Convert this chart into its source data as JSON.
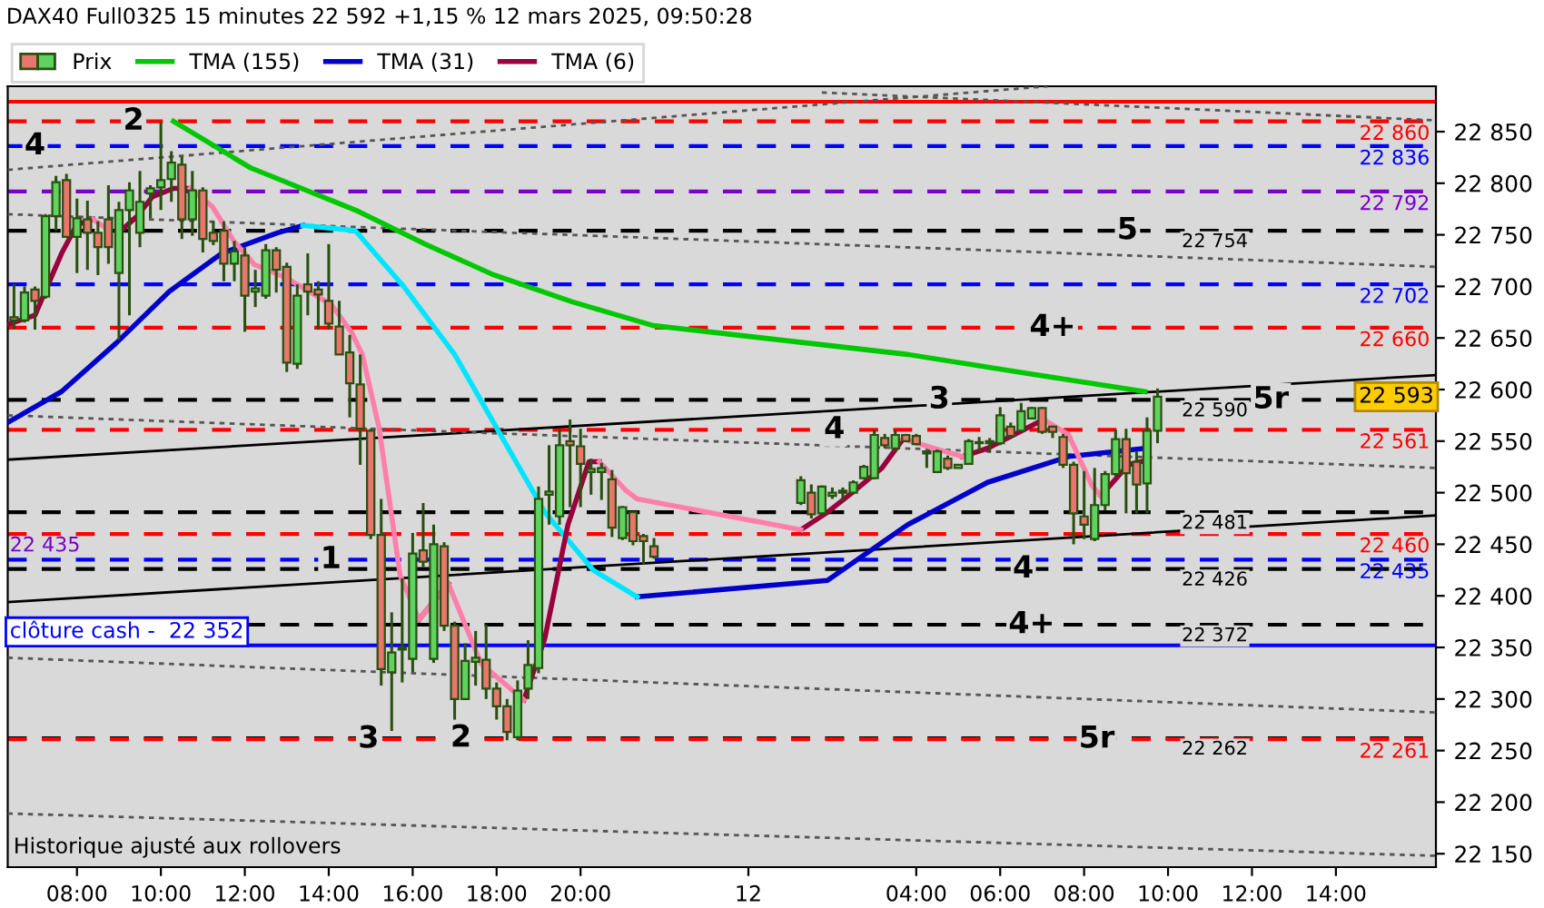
{
  "chart_data": {
    "type": "candlestick",
    "title": "DAX40 Full0325 15 minutes 22 592 +1,15 % 12 mars 2025, 09:50:28",
    "xlim": [
      "2025-03-11T06:21",
      "2025-03-12T16:23"
    ],
    "xticks": [
      {
        "value": "2025-03-11T08:00",
        "label": "08:00"
      },
      {
        "value": "2025-03-11T10:00",
        "label": "10:00"
      },
      {
        "value": "2025-03-11T12:00",
        "label": "12:00"
      },
      {
        "value": "2025-03-11T14:00",
        "label": "14:00"
      },
      {
        "value": "2025-03-11T16:00",
        "label": "16:00"
      },
      {
        "value": "2025-03-11T18:00",
        "label": "18:00"
      },
      {
        "value": "2025-03-11T20:00",
        "label": "20:00"
      },
      {
        "value": "2025-03-12T00:00",
        "label": "12"
      },
      {
        "value": "2025-03-12T04:00",
        "label": "04:00"
      },
      {
        "value": "2025-03-12T06:00",
        "label": "06:00"
      },
      {
        "value": "2025-03-12T08:00",
        "label": "08:00"
      },
      {
        "value": "2025-03-12T10:00",
        "label": "10:00"
      },
      {
        "value": "2025-03-12T12:00",
        "label": "12:00"
      },
      {
        "value": "2025-03-12T14:00",
        "label": "14:00"
      }
    ],
    "ylim": [
      22137,
      22894
    ],
    "yticks": [
      {
        "value": 22150,
        "label": "22 150"
      },
      {
        "value": 22200,
        "label": "22 200"
      },
      {
        "value": 22250,
        "label": "22 250"
      },
      {
        "value": 22300,
        "label": "22 300"
      },
      {
        "value": 22350,
        "label": "22 350"
      },
      {
        "value": 22400,
        "label": "22 400"
      },
      {
        "value": 22450,
        "label": "22 450"
      },
      {
        "value": 22500,
        "label": "22 500"
      },
      {
        "value": 22550,
        "label": "22 550"
      },
      {
        "value": 22600,
        "label": "22 600"
      },
      {
        "value": 22650,
        "label": "22 650"
      },
      {
        "value": 22700,
        "label": "22 700"
      },
      {
        "value": 22750,
        "label": "22 750"
      },
      {
        "value": 22800,
        "label": "22 800"
      },
      {
        "value": 22850,
        "label": "22 850"
      }
    ],
    "legend": "top left",
    "series": [
      {
        "name": "Prix",
        "x": [
          "2025-03-11T06:30",
          "2025-03-11T06:45",
          "2025-03-11T07:00",
          "2025-03-11T07:15",
          "2025-03-11T07:30",
          "2025-03-11T07:45",
          "2025-03-11T08:00",
          "2025-03-11T08:15",
          "2025-03-11T08:30",
          "2025-03-11T08:45",
          "2025-03-11T09:00",
          "2025-03-11T09:15",
          "2025-03-11T09:30",
          "2025-03-11T09:45",
          "2025-03-11T10:00",
          "2025-03-11T10:15",
          "2025-03-11T10:30",
          "2025-03-11T10:45",
          "2025-03-11T11:00",
          "2025-03-11T11:15",
          "2025-03-11T11:30",
          "2025-03-11T11:45",
          "2025-03-11T12:00",
          "2025-03-11T12:15",
          "2025-03-11T12:30",
          "2025-03-11T12:45",
          "2025-03-11T13:00",
          "2025-03-11T13:15",
          "2025-03-11T13:30",
          "2025-03-11T13:45",
          "2025-03-11T14:00",
          "2025-03-11T14:15",
          "2025-03-11T14:30",
          "2025-03-11T14:45",
          "2025-03-11T15:00",
          "2025-03-11T15:15",
          "2025-03-11T15:30",
          "2025-03-11T15:45",
          "2025-03-11T16:00",
          "2025-03-11T16:15",
          "2025-03-11T16:30",
          "2025-03-11T16:45",
          "2025-03-11T17:00",
          "2025-03-11T17:15",
          "2025-03-11T17:30",
          "2025-03-11T17:45",
          "2025-03-11T18:00",
          "2025-03-11T18:15",
          "2025-03-11T18:30",
          "2025-03-11T18:45",
          "2025-03-11T19:00",
          "2025-03-11T19:15",
          "2025-03-11T19:30",
          "2025-03-11T19:45",
          "2025-03-11T20:00",
          "2025-03-11T20:15",
          "2025-03-11T20:30",
          "2025-03-11T20:45",
          "2025-03-11T21:00",
          "2025-03-11T21:15",
          "2025-03-11T21:30",
          "2025-03-11T21:45",
          "2025-03-12T01:15",
          "2025-03-12T01:30",
          "2025-03-12T01:45",
          "2025-03-12T02:00",
          "2025-03-12T02:15",
          "2025-03-12T02:30",
          "2025-03-12T02:45",
          "2025-03-12T03:00",
          "2025-03-12T03:15",
          "2025-03-12T03:30",
          "2025-03-12T03:45",
          "2025-03-12T04:00",
          "2025-03-12T04:15",
          "2025-03-12T04:30",
          "2025-03-12T04:45",
          "2025-03-12T05:00",
          "2025-03-12T05:15",
          "2025-03-12T05:30",
          "2025-03-12T05:45",
          "2025-03-12T06:00",
          "2025-03-12T06:15",
          "2025-03-12T06:30",
          "2025-03-12T06:45",
          "2025-03-12T07:00",
          "2025-03-12T07:15",
          "2025-03-12T07:30",
          "2025-03-12T07:45",
          "2025-03-12T08:00",
          "2025-03-12T08:15",
          "2025-03-12T08:30",
          "2025-03-12T08:45",
          "2025-03-12T09:00",
          "2025-03-12T09:15",
          "2025-03-12T09:30",
          "2025-03-12T09:45"
        ],
        "ohlc": [
          [
            22670,
            22702,
            22659,
            22667
          ],
          [
            22667,
            22700,
            22665,
            22694
          ],
          [
            22697,
            22700,
            22658,
            22686
          ],
          [
            22690,
            22770,
            22688,
            22768
          ],
          [
            22768,
            22807,
            22754,
            22801
          ],
          [
            22803,
            22809,
            22748,
            22748
          ],
          [
            22748,
            22785,
            22713,
            22766
          ],
          [
            22765,
            22783,
            22716,
            22752
          ],
          [
            22752,
            22763,
            22711,
            22738
          ],
          [
            22765,
            22798,
            22722,
            22738
          ],
          [
            22713,
            22782,
            22648,
            22774
          ],
          [
            22774,
            22801,
            22672,
            22793
          ],
          [
            22752,
            22812,
            22738,
            22782
          ],
          [
            22790,
            22798,
            22766,
            22795
          ],
          [
            22796,
            22859,
            22774,
            22803
          ],
          [
            22804,
            22831,
            22782,
            22820
          ],
          [
            22818,
            22826,
            22746,
            22765
          ],
          [
            22765,
            22812,
            22749,
            22793
          ],
          [
            22793,
            22796,
            22733,
            22746
          ],
          [
            22752,
            22763,
            22740,
            22744
          ],
          [
            22754,
            22763,
            22705,
            22722
          ],
          [
            22722,
            22744,
            22705,
            22734
          ],
          [
            22730,
            22738,
            22656,
            22691
          ],
          [
            22695,
            22716,
            22680,
            22698
          ],
          [
            22691,
            22741,
            22688,
            22735
          ],
          [
            22735,
            22738,
            22694,
            22716
          ],
          [
            22719,
            22723,
            22617,
            22626
          ],
          [
            22625,
            22702,
            22620,
            22691
          ],
          [
            22702,
            22732,
            22672,
            22695
          ],
          [
            22697,
            22705,
            22658,
            22692
          ],
          [
            22686,
            22741,
            22658,
            22664
          ],
          [
            22661,
            22686,
            22634,
            22634
          ],
          [
            22636,
            22653,
            22573,
            22606
          ],
          [
            22605,
            22634,
            22527,
            22562
          ],
          [
            22560,
            22562,
            22455,
            22459
          ],
          [
            22459,
            22494,
            22313,
            22329
          ],
          [
            22326,
            22384,
            22269,
            22345
          ],
          [
            22348,
            22417,
            22316,
            22350
          ],
          [
            22339,
            22461,
            22326,
            22441
          ],
          [
            22444,
            22490,
            22428,
            22433
          ],
          [
            22339,
            22469,
            22335,
            22450
          ],
          [
            22448,
            22452,
            22366,
            22371
          ],
          [
            22371,
            22375,
            22280,
            22300
          ],
          [
            22300,
            22354,
            22300,
            22337
          ],
          [
            22336,
            22366,
            22313,
            22340
          ],
          [
            22338,
            22372,
            22300,
            22310
          ],
          [
            22310,
            22316,
            22280,
            22293
          ],
          [
            22293,
            22300,
            22260,
            22268
          ],
          [
            22263,
            22318,
            22260,
            22308
          ],
          [
            22310,
            22357,
            22300,
            22333
          ],
          [
            22330,
            22506,
            22325,
            22494
          ],
          [
            22498,
            22546,
            22469,
            22501
          ],
          [
            22477,
            22561,
            22469,
            22546
          ],
          [
            22550,
            22571,
            22486,
            22546
          ],
          [
            22545,
            22562,
            22486,
            22528
          ],
          [
            22520,
            22533,
            22498,
            22523
          ],
          [
            22520,
            22529,
            22493,
            22524
          ],
          [
            22513,
            22522,
            22457,
            22466
          ],
          [
            22456,
            22487,
            22454,
            22486
          ],
          [
            22481,
            22482,
            22449,
            22453
          ],
          [
            22458,
            22460,
            22431,
            22453
          ],
          [
            22448,
            22456,
            22436,
            22438
          ],
          [
            22490,
            22516,
            22488,
            22512
          ],
          [
            22500,
            22508,
            22475,
            22479
          ],
          [
            22480,
            22507,
            22479,
            22506
          ],
          [
            22497,
            22505,
            22494,
            22500
          ],
          [
            22500,
            22505,
            22492,
            22502
          ],
          [
            22500,
            22512,
            22499,
            22510
          ],
          [
            22514,
            22527,
            22513,
            22525
          ],
          [
            22514,
            22561,
            22513,
            22556
          ],
          [
            22553,
            22557,
            22543,
            22546
          ],
          [
            22543,
            22561,
            22541,
            22556
          ],
          [
            22556,
            22557,
            22549,
            22550
          ],
          [
            22555,
            22557,
            22546,
            22547
          ],
          [
            22538,
            22541,
            22524,
            22540
          ],
          [
            22520,
            22542,
            22519,
            22540
          ],
          [
            22533,
            22536,
            22522,
            22524
          ],
          [
            22524,
            22527,
            22524,
            22527
          ],
          [
            22528,
            22552,
            22527,
            22550
          ],
          [
            22548,
            22554,
            22540,
            22549
          ],
          [
            22548,
            22553,
            22539,
            22550
          ],
          [
            22548,
            22583,
            22546,
            22575
          ],
          [
            22564,
            22568,
            22554,
            22555
          ],
          [
            22560,
            22587,
            22559,
            22579
          ],
          [
            22572,
            22583,
            22571,
            22582
          ],
          [
            22582,
            22583,
            22557,
            22559
          ],
          [
            22564,
            22565,
            22553,
            22559
          ],
          [
            22554,
            22557,
            22524,
            22527
          ],
          [
            22527,
            22530,
            22450,
            22480
          ],
          [
            22477,
            22521,
            22455,
            22469
          ],
          [
            22455,
            22524,
            22453,
            22488
          ],
          [
            22488,
            22521,
            22483,
            22518
          ],
          [
            22518,
            22561,
            22516,
            22552
          ],
          [
            22552,
            22562,
            22480,
            22519
          ],
          [
            22530,
            22540,
            22480,
            22508
          ],
          [
            22509,
            22573,
            22480,
            22560
          ],
          [
            22560,
            22601,
            22548,
            22593
          ]
        ],
        "colors": [
          "#e8766d",
          "#5fd35f",
          "#e8766d",
          "#5fd35f",
          "#5fd35f",
          "#e8766d",
          "#5fd35f",
          "#e8766d",
          "#e8766d",
          "#e8766d",
          "#5fd35f",
          "#5fd35f",
          "#5fd35f",
          "#5fd35f",
          "#5fd35f",
          "#5fd35f",
          "#e8766d",
          "#5fd35f",
          "#e8766d",
          "#e8766d",
          "#e8766d",
          "#5fd35f",
          "#e8766d",
          "#5fd35f",
          "#5fd35f",
          "#e8766d",
          "#e8766d",
          "#5fd35f",
          "#e8766d",
          "#e8766d",
          "#e8766d",
          "#e8766d",
          "#e8766d",
          "#e8766d",
          "#e8766d",
          "#e8766d",
          "#5fd35f",
          "#5fd35f",
          "#5fd35f",
          "#e8766d",
          "#5fd35f",
          "#e8766d",
          "#e8766d",
          "#5fd35f",
          "#5fd35f",
          "#e8766d",
          "#e8766d",
          "#e8766d",
          "#5fd35f",
          "#5fd35f",
          "#5fd35f",
          "#5fd35f",
          "#5fd35f",
          "#e8766d",
          "#e8766d",
          "#5fd35f",
          "#5fd35f",
          "#e8766d",
          "#5fd35f",
          "#e8766d",
          "#e8766d",
          "#e8766d",
          "#5fd35f",
          "#e8766d",
          "#5fd35f",
          "#5fd35f",
          "#5fd35f",
          "#5fd35f",
          "#5fd35f",
          "#5fd35f",
          "#e8766d",
          "#5fd35f",
          "#e8766d",
          "#e8766d",
          "#5fd35f",
          "#5fd35f",
          "#e8766d",
          "#5fd35f",
          "#5fd35f",
          "#5fd35f",
          "#5fd35f",
          "#5fd35f",
          "#e8766d",
          "#5fd35f",
          "#5fd35f",
          "#e8766d",
          "#e8766d",
          "#e8766d",
          "#e8766d",
          "#e8766d",
          "#5fd35f",
          "#5fd35f",
          "#5fd35f",
          "#e8766d",
          "#e8766d",
          "#5fd35f",
          "#5fd35f"
        ]
      },
      {
        "type": "line",
        "color": "#000000",
        "line_style": "solid",
        "x": [
          "2025-03-11T06:21",
          "2025-03-12T16:23"
        ],
        "values": [
          22532,
          22614
        ]
      },
      {
        "type": "line",
        "color": "#000000",
        "line_style": "solid",
        "x": [
          "2025-03-11T06:21",
          "2025-03-12T16:23"
        ],
        "values": [
          22394,
          22478
        ]
      },
      {
        "type": "line",
        "color": "#555555",
        "line_style": "dotted",
        "x": [
          "2025-03-11T06:21",
          "2025-03-12T16:23"
        ],
        "values": [
          22575,
          22524
        ]
      },
      {
        "type": "line",
        "color": "#555555",
        "line_style": "dotted",
        "x": [
          "2025-03-11T06:21",
          "2025-03-12T16:23"
        ],
        "values": [
          22770,
          22719
        ]
      },
      {
        "type": "line",
        "color": "#555555",
        "line_style": "dotted",
        "x": [
          "2025-03-11T06:21",
          "2025-03-12T07:08"
        ],
        "values": [
          22813,
          22894
        ]
      },
      {
        "type": "line",
        "color": "#555555",
        "line_style": "dotted",
        "x": [
          "2025-03-12T01:45",
          "2025-03-12T16:23"
        ],
        "values": [
          22888,
          22861
        ]
      },
      {
        "type": "line",
        "color": "#555555",
        "line_style": "dotted",
        "x": [
          "2025-03-11T06:21",
          "2025-03-12T16:23"
        ],
        "values": [
          22340,
          22287
        ]
      },
      {
        "type": "line",
        "color": "#555555",
        "line_style": "dotted",
        "x": [
          "2025-03-11T06:21",
          "2025-03-12T16:23"
        ],
        "values": [
          22189,
          22148
        ]
      },
      {
        "type": "line",
        "name": "TMA (155)",
        "color": "#00c800",
        "x": [
          "2025-03-11T10:18",
          "2025-03-11T12:08",
          "2025-03-11T14:38",
          "2025-03-11T16:21",
          "2025-03-11T17:53",
          "2025-03-11T19:48",
          "2025-03-11T21:44",
          "2025-03-12T03:48",
          "2025-03-12T06:45",
          "2025-03-12T09:27"
        ],
        "values": [
          22860,
          22815,
          22774,
          22740,
          22712,
          22685,
          22662,
          22634,
          22615,
          22598
        ]
      },
      {
        "type": "line",
        "name": "TMA (31)",
        "color": "#0000cc",
        "x": [
          "2025-03-11T06:21",
          "2025-03-11T07:38",
          "2025-03-11T08:56",
          "2025-03-11T10:12",
          "2025-03-11T11:27",
          "2025-03-11T12:47",
          "2025-03-11T13:23",
          "2025-03-11T14:38",
          "2025-03-11T15:47",
          "2025-03-11T17:00",
          "2025-03-11T18:00",
          "2025-03-11T19:09",
          "2025-03-11T20:18",
          "2025-03-11T21:21",
          "2025-03-12T01:53",
          "2025-03-12T03:48",
          "2025-03-12T05:42",
          "2025-03-12T07:38",
          "2025-03-12T09:27"
        ],
        "values": [
          22568,
          22598,
          22645,
          22695,
          22732,
          22752,
          22759,
          null,
          null,
          null,
          null,
          null,
          null,
          22399,
          22415,
          22469,
          22510,
          22535,
          22543
        ]
      },
      {
        "type": "line",
        "color": "#00e5ff",
        "x": [
          "2025-03-11T13:23",
          "2025-03-11T14:38",
          "2025-03-11T15:47",
          "2025-03-11T17:00",
          "2025-03-11T18:00",
          "2025-03-11T19:09",
          "2025-03-11T20:18",
          "2025-03-11T21:21"
        ],
        "values": [
          22759,
          22754,
          22700,
          22634,
          22563,
          22481,
          22425,
          22399
        ]
      },
      {
        "type": "line",
        "name": "TMA (6)",
        "color": "#99003d",
        "x": [
          "2025-03-11T06:21",
          "2025-03-11T07:00",
          "2025-03-11T07:38",
          "2025-03-11T08:00",
          "2025-03-11T08:23",
          "2025-03-11T08:47",
          "2025-03-11T09:03",
          "2025-03-11T09:26",
          "2025-03-11T09:48",
          "2025-03-11T10:18",
          "2025-03-11T10:42",
          "2025-03-11T11:14",
          "2025-03-11T11:44",
          "2025-03-11T12:14",
          "2025-03-11T13:00",
          "2025-03-11T13:39",
          "2025-03-11T14:03",
          "2025-03-11T14:33",
          "2025-03-11T14:48",
          "2025-03-11T15:12",
          "2025-03-11T15:42",
          "2025-03-11T16:09",
          "2025-03-11T16:51",
          "2025-03-11T17:38",
          "2025-03-11T18:39",
          "2025-03-11T19:09",
          "2025-03-11T19:42",
          "2025-03-11T20:12",
          "2025-03-11T20:27",
          "2025-03-11T21:05",
          "2025-03-11T21:21",
          "2025-03-12T01:15",
          "2025-03-12T01:53",
          "2025-03-12T02:32",
          "2025-03-12T03:11",
          "2025-03-12T03:41",
          "2025-03-12T04:11",
          "2025-03-12T05:06",
          "2025-03-12T05:42",
          "2025-03-12T06:45",
          "2025-03-12T07:02",
          "2025-03-12T07:38",
          "2025-03-12T08:11",
          "2025-03-12T08:24",
          "2025-03-12T09:03",
          "2025-03-12T09:32"
        ],
        "values": [
          22663,
          22672,
          22732,
          22760,
          22765,
          null,
          22754,
          22768,
          22787,
          22795,
          22795,
          null,
          null,
          null,
          null,
          null,
          null,
          null,
          null,
          null,
          null,
          22377,
          22412,
          null,
          22299,
          22359,
          22469,
          22530,
          22530,
          null,
          null,
          22464,
          22481,
          22502,
          22524,
          22552,
          null,
          22535,
          22543,
          22565,
          22571,
          null,
          null,
          22497,
          22527,
          22532
        ]
      },
      {
        "type": "line",
        "color": "#ff7faa",
        "x": [
          "2025-03-11T08:23",
          "2025-03-11T08:47",
          "2025-03-11T09:03",
          "2025-03-11T09:26",
          "2025-03-11T09:48",
          "2025-03-11T10:18",
          "2025-03-11T10:42",
          "2025-03-11T11:14",
          "2025-03-11T11:44",
          "2025-03-11T12:14",
          "2025-03-11T13:00",
          "2025-03-11T13:39",
          "2025-03-11T14:03",
          "2025-03-11T14:33",
          "2025-03-11T14:48",
          "2025-03-11T15:12",
          "2025-03-11T15:42",
          "2025-03-11T16:09",
          "2025-03-11T16:51",
          "2025-03-11T17:38",
          "2025-03-11T18:39",
          "2025-03-11T19:09",
          "2025-03-11T19:42",
          "2025-03-11T20:12",
          "2025-03-11T20:27",
          "2025-03-11T21:05",
          "2025-03-11T21:21",
          "2025-03-12T01:15",
          "2025-03-12T01:53",
          "2025-03-12T02:32",
          "2025-03-12T03:11",
          "2025-03-12T03:41",
          "2025-03-12T04:11",
          "2025-03-12T05:06",
          "2025-03-12T05:42",
          "2025-03-12T06:45",
          "2025-03-12T07:02",
          "2025-03-12T07:38",
          "2025-03-12T08:11",
          "2025-03-12T08:24"
        ],
        "values": [
          22765,
          22754,
          null,
          null,
          null,
          null,
          22795,
          22777,
          22744,
          22721,
          22708,
          22692,
          22683,
          22655,
          22634,
          22563,
          22420,
          22377,
          22412,
          22334,
          22299,
          null,
          null,
          null,
          22530,
          22502,
          22494,
          22464,
          null,
          null,
          null,
          22552,
          22546,
          22535,
          null,
          null,
          22571,
          22556,
          22507,
          22497
        ]
      }
    ],
    "ref_lines": [
      {
        "axis": "y",
        "value": 22879,
        "color": "#ff0000",
        "line_style": "solid"
      },
      {
        "axis": "y",
        "value": 22860,
        "label": "22 860",
        "color": "#ff0000",
        "line_style": "dashed"
      },
      {
        "axis": "y",
        "value": 22836,
        "label": "22 836",
        "color": "#0000ff",
        "line_style": "dashed"
      },
      {
        "axis": "y",
        "value": 22792,
        "label": "22 792",
        "color": "#7a00c8",
        "line_style": "dashed"
      },
      {
        "axis": "y",
        "value": 22754,
        "label": "22 754",
        "color": "#000000",
        "line_style": "dashed"
      },
      {
        "axis": "y",
        "value": 22702,
        "label": "22 702",
        "color": "#0000ff",
        "line_style": "dashed"
      },
      {
        "axis": "y",
        "value": 22660,
        "label": "22 660",
        "color": "#ff0000",
        "line_style": "dashed"
      },
      {
        "axis": "y",
        "value": 22590,
        "label": "22 590",
        "color": "#000000",
        "line_style": "dashed"
      },
      {
        "axis": "y",
        "value": 22561,
        "label": "22 561",
        "color": "#ff0000",
        "line_style": "dashed"
      },
      {
        "axis": "y",
        "value": 22481,
        "label": "22 481",
        "color": "#000000",
        "line_style": "dashed"
      },
      {
        "axis": "y",
        "value": 22460,
        "label": "22 460",
        "color": "#ff0000",
        "line_style": "dashed"
      },
      {
        "axis": "y",
        "value": 22435,
        "label": "22 435",
        "color": "#0000ff",
        "line_style": "dashed"
      },
      {
        "axis": "y",
        "value": 22426,
        "label": "22 426",
        "color": "#000000",
        "line_style": "dashed"
      },
      {
        "axis": "y",
        "value": 22372,
        "label": "22 372",
        "color": "#000000",
        "line_style": "dashed"
      },
      {
        "axis": "y",
        "value": 22352,
        "label": "clôture cash -  22 352",
        "color": "#0000ff",
        "line_style": "solid"
      },
      {
        "axis": "y",
        "value": 22262,
        "label": "22 262",
        "color": "#000000",
        "line_style": "dashed"
      },
      {
        "axis": "y",
        "value": 22261,
        "label": "22 261",
        "color": "#ff0000",
        "line_style": "dashed"
      }
    ],
    "annotations": [
      {
        "text": "4",
        "x": "2025-03-11T07:00",
        "y": 22836
      },
      {
        "text": "2",
        "x": "2025-03-11T09:21",
        "y": 22860
      },
      {
        "text": "5",
        "x": "2025-03-12T09:02",
        "y": 22754
      },
      {
        "text": "4+",
        "x": "2025-03-12T07:15",
        "y": 22660
      },
      {
        "text": "3",
        "x": "2025-03-12T04:33",
        "y": 22590
      },
      {
        "text": "5r",
        "x": "2025-03-12T12:27",
        "y": 22590
      },
      {
        "text": "4",
        "x": "2025-03-12T02:03",
        "y": 22561
      },
      {
        "text": "1",
        "x": "2025-03-11T14:03",
        "y": 22435
      },
      {
        "text": "4",
        "x": "2025-03-12T06:33",
        "y": 22426
      },
      {
        "text": "4+",
        "x": "2025-03-12T06:45",
        "y": 22372
      },
      {
        "text": "3",
        "x": "2025-03-11T14:57",
        "y": 22261
      },
      {
        "text": "2",
        "x": "2025-03-11T17:09",
        "y": 22262
      },
      {
        "text": "5r",
        "x": "2025-03-12T08:18",
        "y": 22261
      },
      {
        "text": "22 435",
        "x": "2025-03-11T06:21",
        "y": 22435
      },
      {
        "text": "22 593",
        "x": "2025-03-12T16:23",
        "y": 22593
      },
      "Historique ajusté aux rollovers"
    ]
  }
}
